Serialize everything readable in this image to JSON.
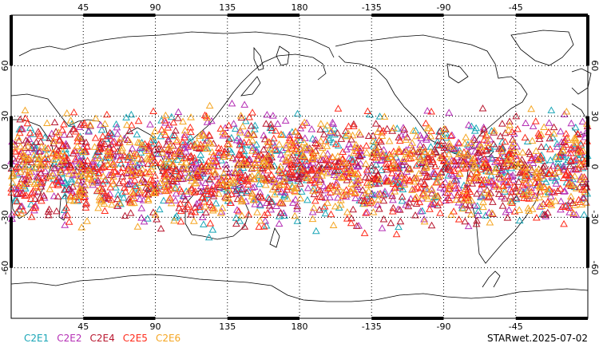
{
  "chart_data": {
    "type": "scatter",
    "title": "",
    "projection": "equirectangular",
    "center_longitude": 180,
    "xlim": [
      0,
      360
    ],
    "ylim": [
      -90,
      90
    ],
    "grid": true,
    "top_ticks": [
      "45",
      "90",
      "135",
      "180",
      "-135",
      "-90",
      "-45"
    ],
    "bottom_ticks": [
      "45",
      "90",
      "135",
      "180",
      "-135",
      "-90",
      "-45"
    ],
    "lat_ticks": [
      "60",
      "30",
      "0",
      "-30",
      "-60"
    ],
    "tick_longitudes": [
      45,
      90,
      135,
      180,
      225,
      270,
      315
    ],
    "tick_latitudes": [
      60,
      30,
      0,
      -30,
      -60
    ],
    "marker": "triangle-open",
    "latitude_band": [
      -45,
      42
    ],
    "series": [
      {
        "name": "C2E1",
        "color": "#1aa6b7",
        "count": 420
      },
      {
        "name": "C2E2",
        "color": "#b52fb5",
        "count": 560
      },
      {
        "name": "C2E4",
        "color": "#b8172f",
        "count": 520
      },
      {
        "name": "C2E5",
        "color": "#ff2a1a",
        "count": 620
      },
      {
        "name": "C2E6",
        "color": "#f5a623",
        "count": 560
      }
    ]
  },
  "footer": {
    "label": "STARwet.2025-07-02"
  }
}
